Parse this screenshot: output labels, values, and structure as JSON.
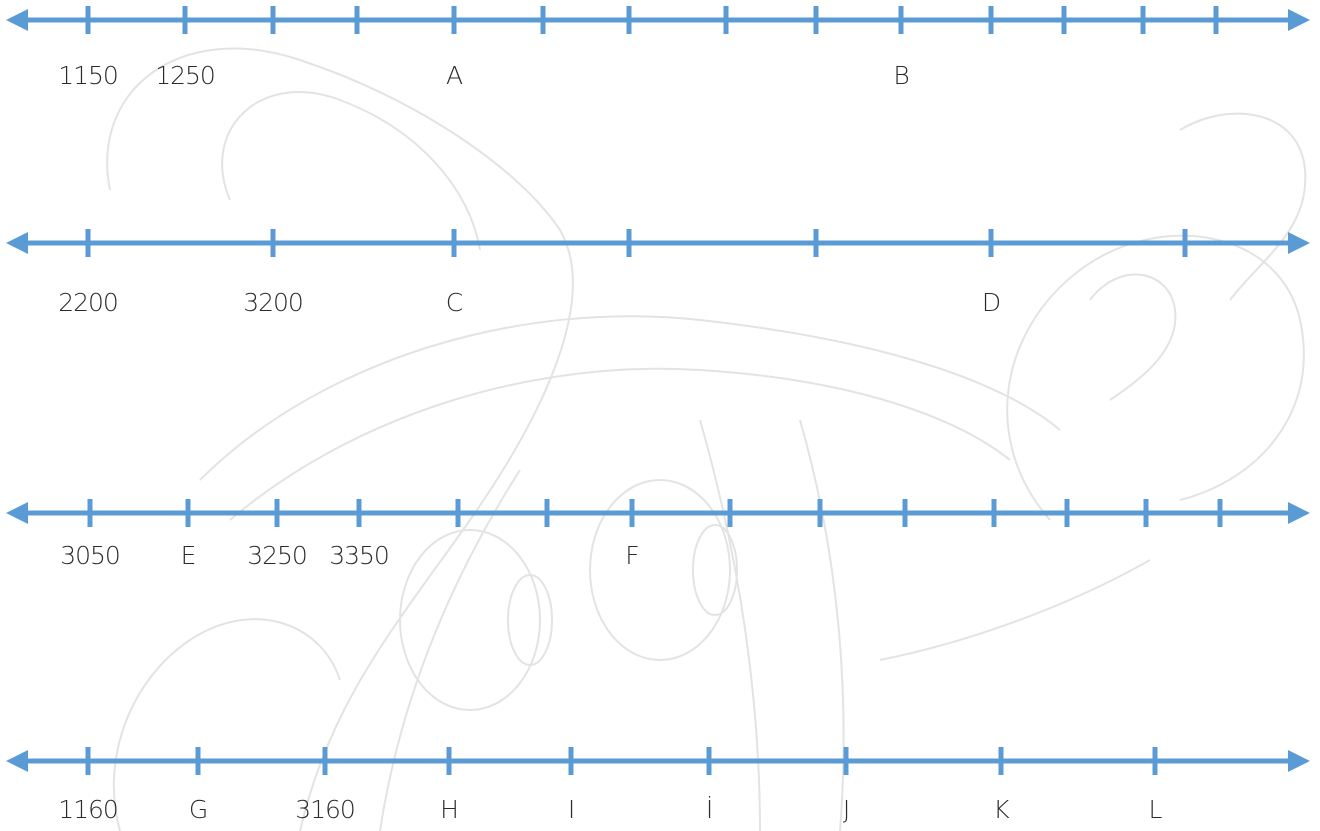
{
  "colors": {
    "axis": "#5b9bd5",
    "label": "#2b2b2b",
    "background_art": "#e3e3e3"
  },
  "number_lines": [
    {
      "id": "line-1",
      "tick_count": 14,
      "labels": [
        {
          "tick": 0,
          "text": "1150"
        },
        {
          "tick": 1,
          "text": "1250"
        },
        {
          "tick": 4,
          "text": "A"
        },
        {
          "tick": 9,
          "text": "B"
        }
      ]
    },
    {
      "id": "line-2",
      "tick_count": 7,
      "labels": [
        {
          "tick": 0,
          "text": "2200"
        },
        {
          "tick": 1,
          "text": "3200"
        },
        {
          "tick": 2,
          "text": "C"
        },
        {
          "tick": 5,
          "text": "D"
        }
      ]
    },
    {
      "id": "line-3",
      "tick_count": 14,
      "labels": [
        {
          "tick": 0,
          "text": "3050"
        },
        {
          "tick": 1,
          "text": "E"
        },
        {
          "tick": 2,
          "text": "3250"
        },
        {
          "tick": 3,
          "text": "3350"
        },
        {
          "tick": 6,
          "text": "F"
        }
      ]
    },
    {
      "id": "line-4",
      "tick_count": 9,
      "labels": [
        {
          "tick": 0,
          "text": "1160"
        },
        {
          "tick": 1,
          "text": "G"
        },
        {
          "tick": 2,
          "text": "3160"
        },
        {
          "tick": 3,
          "text": "H"
        },
        {
          "tick": 4,
          "text": "I"
        },
        {
          "tick": 5,
          "text": "İ"
        },
        {
          "tick": 6,
          "text": "J"
        },
        {
          "tick": 7,
          "text": "K"
        },
        {
          "tick": 8,
          "text": "L"
        }
      ]
    }
  ]
}
